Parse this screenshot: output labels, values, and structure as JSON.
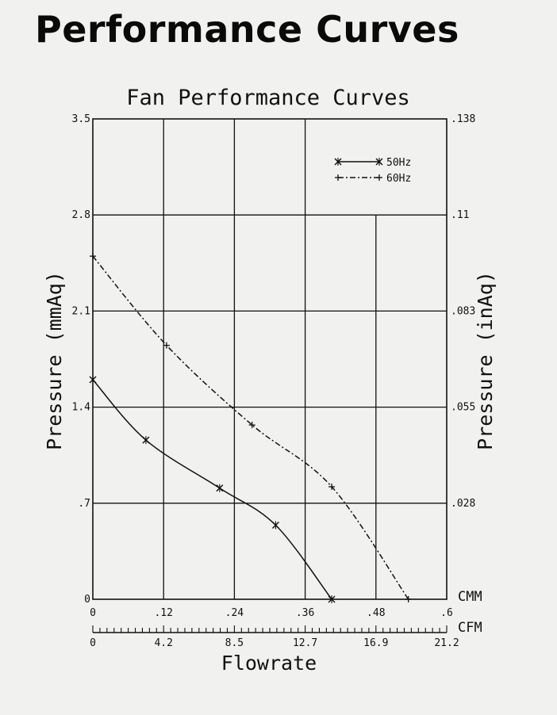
{
  "page_title": "Performance Curves",
  "chart_data": {
    "type": "line",
    "title": "Fan Performance Curves",
    "xlabel": "Flowrate",
    "ylabel_left": "Pressure (mmAq)",
    "ylabel_right": "Pressure (inAq)",
    "x_unit_primary": "CMM",
    "x_unit_secondary": "CFM",
    "xlim": [
      0,
      0.6
    ],
    "ylim": [
      0,
      3.5
    ],
    "x_ticks": [
      0,
      0.12,
      0.24,
      0.36,
      0.48,
      0.6
    ],
    "x_tick_labels": [
      "0",
      ".12",
      ".24",
      ".36",
      ".48",
      ".6"
    ],
    "x2_tick_labels": [
      "0",
      "4.2",
      "8.5",
      "12.7",
      "16.9",
      "21.2"
    ],
    "y_ticks": [
      0,
      0.7,
      1.4,
      2.1,
      2.8,
      3.5
    ],
    "y_tick_labels": [
      "0",
      ".7",
      "1.4",
      "2.1",
      "2.8",
      "3.5"
    ],
    "y2_tick_labels": [
      "",
      ".028",
      ".055",
      ".083",
      ".11",
      ".138"
    ],
    "grid": true,
    "legend_position": "top-right",
    "series": [
      {
        "name": "50Hz",
        "style": "solid",
        "marker": "*",
        "x": [
          0,
          0.09,
          0.215,
          0.31,
          0.405
        ],
        "y": [
          1.6,
          1.16,
          0.81,
          0.54,
          0
        ]
      },
      {
        "name": "60Hz",
        "style": "dashdot",
        "marker": "+",
        "x": [
          0,
          0.125,
          0.27,
          0.405,
          0.535
        ],
        "y": [
          2.5,
          1.85,
          1.27,
          0.82,
          0
        ]
      }
    ]
  }
}
